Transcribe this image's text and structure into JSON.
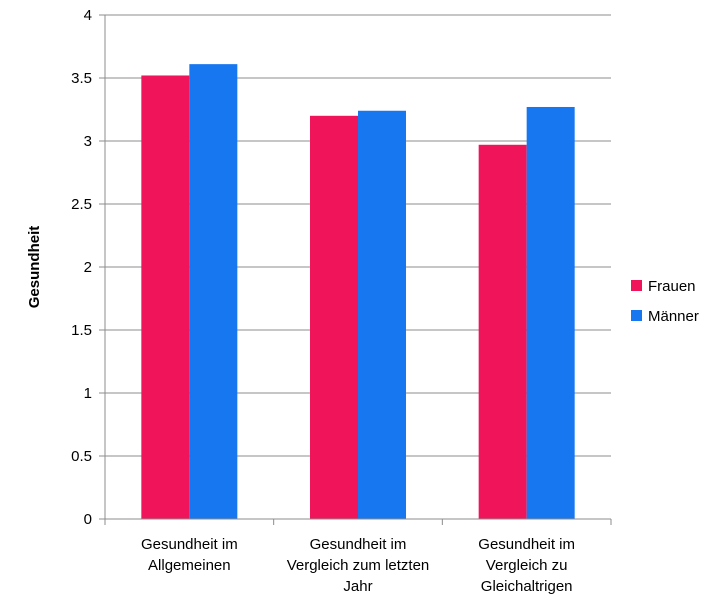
{
  "chart_data": {
    "type": "bar",
    "title": "",
    "xlabel": "",
    "ylabel": "Gesundheit",
    "ylim": [
      0,
      4
    ],
    "yticks": [
      "0",
      "0.5",
      "1",
      "1.5",
      "2",
      "2.5",
      "3",
      "3.5",
      "4"
    ],
    "grid": true,
    "legend_position": "right",
    "categories": [
      [
        "Gesundheit im",
        "Allgemeinen"
      ],
      [
        "Gesundheit im",
        "Vergleich zum letzten",
        "Jahr"
      ],
      [
        "Gesundheit im",
        "Vergleich zu",
        "Gleichaltrigen"
      ]
    ],
    "series": [
      {
        "name": "Frauen",
        "color": "#F0155A",
        "values": [
          3.52,
          3.2,
          2.97
        ]
      },
      {
        "name": "Männer",
        "color": "#1677F0",
        "values": [
          3.61,
          3.24,
          3.27
        ]
      }
    ]
  }
}
